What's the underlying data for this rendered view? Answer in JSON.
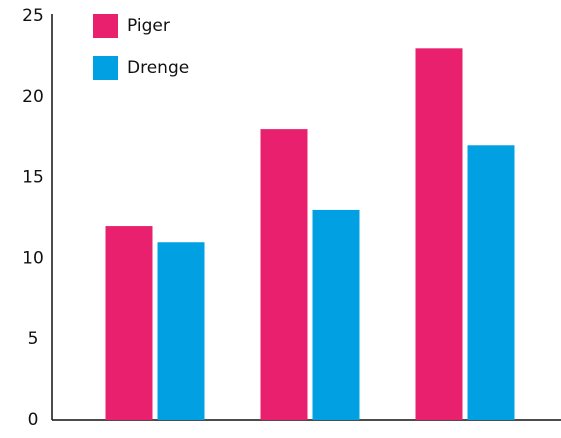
{
  "chart_data": {
    "type": "bar",
    "categories": [
      null,
      null,
      null
    ],
    "series": [
      {
        "name": "Piger",
        "color": "#e8206e",
        "values": [
          12,
          18,
          23
        ]
      },
      {
        "name": "Drenge",
        "color": "#00a0e3",
        "values": [
          11,
          13,
          17
        ]
      }
    ],
    "ylim": [
      0,
      25
    ],
    "yticks": [
      0,
      5,
      10,
      15,
      20,
      25
    ],
    "grid": false,
    "legend": "top-left"
  }
}
